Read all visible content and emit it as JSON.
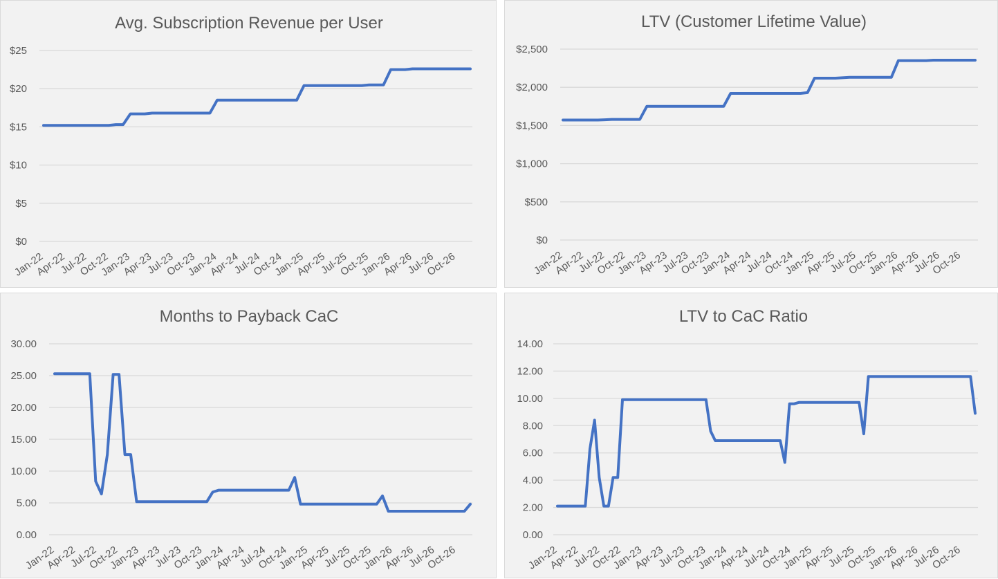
{
  "chart_data": [
    {
      "type": "line",
      "title": "Avg. Subscription Revenue per User",
      "ylim": [
        0,
        25
      ],
      "yticks": [
        0,
        5,
        10,
        15,
        20,
        25
      ],
      "ytick_labels": [
        "$0",
        "$5",
        "$10",
        "$15",
        "$20",
        "$25"
      ],
      "grid": true,
      "x_tick_labels": [
        "Jan-22",
        "Apr-22",
        "Jul-22",
        "Oct-22",
        "Jan-23",
        "Apr-23",
        "Jul-23",
        "Oct-23",
        "Jan-24",
        "Apr-24",
        "Jul-24",
        "Oct-24",
        "Jan-25",
        "Apr-25",
        "Jul-25",
        "Oct-25",
        "Jan-26",
        "Apr-26",
        "Jul-26",
        "Oct-26"
      ],
      "series": [
        {
          "values": [
            15.2,
            15.2,
            15.2,
            15.2,
            15.2,
            15.2,
            15.2,
            15.2,
            15.2,
            15.2,
            15.3,
            15.3,
            16.7,
            16.7,
            16.7,
            16.8,
            16.8,
            16.8,
            16.8,
            16.8,
            16.8,
            16.8,
            16.8,
            16.8,
            18.5,
            18.5,
            18.5,
            18.5,
            18.5,
            18.5,
            18.5,
            18.5,
            18.5,
            18.5,
            18.5,
            18.5,
            20.4,
            20.4,
            20.4,
            20.4,
            20.4,
            20.4,
            20.4,
            20.4,
            20.4,
            20.5,
            20.5,
            20.5,
            22.5,
            22.5,
            22.5,
            22.6,
            22.6,
            22.6,
            22.6,
            22.6,
            22.6,
            22.6,
            22.6,
            22.6
          ]
        }
      ]
    },
    {
      "type": "line",
      "title": "LTV (Customer Lifetime Value)",
      "ylim": [
        0,
        2500
      ],
      "yticks": [
        0,
        500,
        1000,
        1500,
        2000,
        2500
      ],
      "ytick_labels": [
        "$0",
        "$500",
        "$1,000",
        "$1,500",
        "$2,000",
        "$2,500"
      ],
      "grid": true,
      "x_tick_labels": [
        "Jan-22",
        "Apr-22",
        "Jul-22",
        "Oct-22",
        "Jan-23",
        "Apr-23",
        "Jul-23",
        "Oct-23",
        "Jan-24",
        "Apr-24",
        "Jul-24",
        "Oct-24",
        "Jan-25",
        "Apr-25",
        "Jul-25",
        "Oct-25",
        "Jan-26",
        "Apr-26",
        "Jul-26",
        "Oct-26"
      ],
      "series": [
        {
          "values": [
            1572,
            1572,
            1572,
            1572,
            1572,
            1572,
            1575,
            1580,
            1580,
            1580,
            1580,
            1580,
            1750,
            1750,
            1750,
            1750,
            1750,
            1750,
            1750,
            1750,
            1750,
            1750,
            1750,
            1750,
            1920,
            1920,
            1920,
            1920,
            1920,
            1920,
            1920,
            1920,
            1920,
            1920,
            1920,
            1930,
            2120,
            2120,
            2120,
            2120,
            2125,
            2130,
            2130,
            2130,
            2130,
            2130,
            2130,
            2130,
            2350,
            2350,
            2350,
            2350,
            2350,
            2355,
            2355,
            2355,
            2355,
            2355,
            2355,
            2355
          ]
        }
      ]
    },
    {
      "type": "line",
      "title": "Months to Payback CaC",
      "ylim": [
        0,
        30
      ],
      "yticks": [
        0,
        5,
        10,
        15,
        20,
        25,
        30
      ],
      "ytick_labels": [
        "0.00",
        "5.00",
        "10.00",
        "15.00",
        "20.00",
        "25.00",
        "30.00"
      ],
      "grid": true,
      "x_tick_labels": [
        "Jan-22",
        "Apr-22",
        "Jul-22",
        "Oct-22",
        "Jan-23",
        "Apr-23",
        "Jul-23",
        "Oct-23",
        "Jan-24",
        "Apr-24",
        "Jul-24",
        "Oct-24",
        "Jan-25",
        "Apr-25",
        "Jul-25",
        "Oct-25",
        "Jan-26",
        "Apr-26",
        "Jul-26",
        "Oct-26"
      ],
      "series": [
        {
          "values": [
            25.3,
            25.3,
            25.3,
            25.3,
            25.3,
            25.3,
            25.3,
            8.4,
            6.4,
            12.6,
            25.2,
            25.2,
            12.6,
            12.6,
            5.2,
            5.2,
            5.2,
            5.2,
            5.2,
            5.2,
            5.2,
            5.2,
            5.2,
            5.2,
            5.2,
            5.2,
            5.2,
            6.7,
            7.0,
            7.0,
            7.0,
            7.0,
            7.0,
            7.0,
            7.0,
            7.0,
            7.0,
            7.0,
            7.0,
            7.0,
            7.0,
            9.0,
            4.8,
            4.8,
            4.8,
            4.8,
            4.8,
            4.8,
            4.8,
            4.8,
            4.8,
            4.8,
            4.8,
            4.8,
            4.8,
            4.8,
            6.1,
            3.7,
            3.7,
            3.7,
            3.7,
            3.7,
            3.7,
            3.7,
            3.7,
            3.7,
            3.7,
            3.7,
            3.7,
            3.7,
            3.7,
            4.8
          ]
        }
      ]
    },
    {
      "type": "line",
      "title": "LTV to CaC Ratio",
      "ylim": [
        0,
        14
      ],
      "yticks": [
        0,
        2,
        4,
        6,
        8,
        10,
        12,
        14
      ],
      "ytick_labels": [
        "0.00",
        "2.00",
        "4.00",
        "6.00",
        "8.00",
        "10.00",
        "12.00",
        "14.00"
      ],
      "grid": true,
      "x_tick_labels": [
        "Jan-22",
        "Apr-22",
        "Jul-22",
        "Oct-22",
        "Jan-23",
        "Apr-23",
        "Jul-23",
        "Oct-23",
        "Jan-24",
        "Apr-24",
        "Jul-24",
        "Oct-24",
        "Jan-25",
        "Apr-25",
        "Jul-25",
        "Oct-25",
        "Jan-26",
        "Apr-26",
        "Jul-26",
        "Oct-26"
      ],
      "series": [
        {
          "values": [
            2.1,
            2.1,
            2.1,
            2.1,
            2.1,
            2.1,
            2.1,
            6.3,
            8.4,
            4.2,
            2.1,
            2.1,
            4.2,
            4.2,
            9.9,
            9.9,
            9.9,
            9.9,
            9.9,
            9.9,
            9.9,
            9.9,
            9.9,
            9.9,
            9.9,
            9.9,
            9.9,
            9.9,
            9.9,
            9.9,
            9.9,
            9.9,
            9.9,
            7.6,
            6.9,
            6.9,
            6.9,
            6.9,
            6.9,
            6.9,
            6.9,
            6.9,
            6.9,
            6.9,
            6.9,
            6.9,
            6.9,
            6.9,
            6.9,
            5.3,
            9.6,
            9.6,
            9.7,
            9.7,
            9.7,
            9.7,
            9.7,
            9.7,
            9.7,
            9.7,
            9.7,
            9.7,
            9.7,
            9.7,
            9.7,
            9.7,
            7.4,
            11.6,
            11.6,
            11.6,
            11.6,
            11.6,
            11.6,
            11.6,
            11.6,
            11.6,
            11.6,
            11.6,
            11.6,
            11.6,
            11.6,
            11.6,
            11.6,
            11.6,
            11.6,
            11.6,
            11.6,
            11.6,
            11.6,
            11.6,
            8.9
          ]
        }
      ]
    }
  ]
}
